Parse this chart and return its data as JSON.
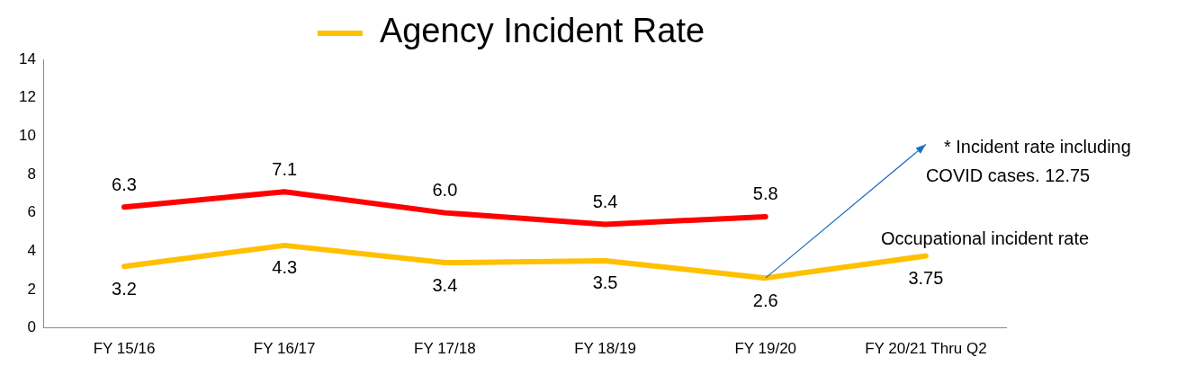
{
  "chart_data": {
    "type": "line",
    "categories": [
      "FY 15/16",
      "FY 16/17",
      "FY 17/18",
      "FY 18/19",
      "FY 19/20",
      "FY 20/21 Thru Q2"
    ],
    "series": [
      {
        "color": "#ff0000",
        "values": [
          6.3,
          7.1,
          6.0,
          5.4,
          5.8,
          null
        ],
        "value_labels": [
          "6.3",
          "7.1",
          "6.0",
          "5.4",
          "5.8",
          null
        ]
      },
      {
        "name": "Agency Incident Rate",
        "color": "#ffc000",
        "values": [
          3.2,
          4.3,
          3.4,
          3.5,
          2.6,
          3.75
        ],
        "value_labels": [
          "3.2",
          "4.3",
          "3.4",
          "3.5",
          "2.6",
          "3.75"
        ]
      }
    ],
    "ylim": [
      0,
      14
    ],
    "yticks": [
      0,
      2,
      4,
      6,
      8,
      10,
      12,
      14
    ],
    "grid": false,
    "legend": "top",
    "marker": "none",
    "line_style": "solid",
    "annotations": [
      "* Incident rate including COVID cases. 12.75",
      "Occupational incident rate"
    ]
  }
}
